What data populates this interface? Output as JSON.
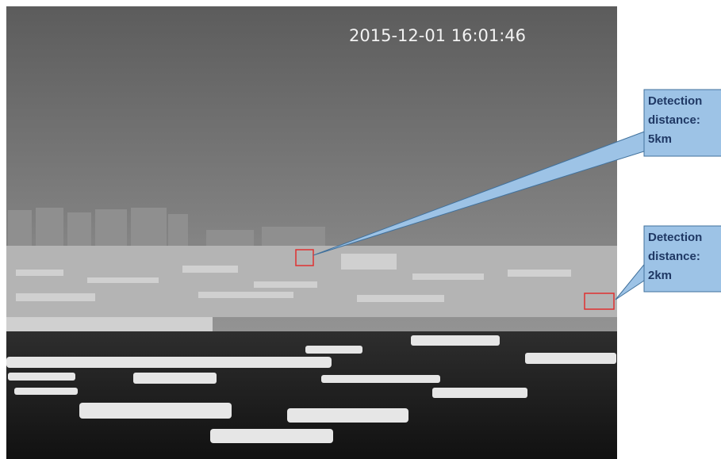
{
  "timestamp": "2015-12-01 16:01:46",
  "callouts": [
    {
      "lines": [
        "Detection",
        "distance:",
        "5km"
      ]
    },
    {
      "lines": [
        "Detection",
        "distance:",
        "2km"
      ]
    }
  ]
}
